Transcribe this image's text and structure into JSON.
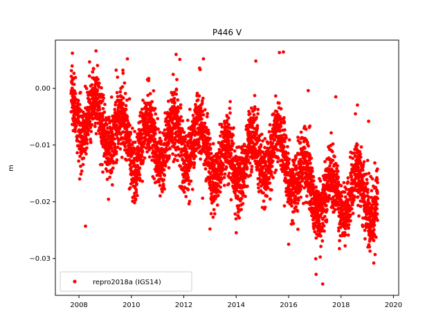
{
  "chart_data": {
    "type": "scatter",
    "title": "P446 V",
    "xlabel": "",
    "ylabel": "m",
    "xlim": [
      2007.1,
      2020.2
    ],
    "ylim": [
      -0.0365,
      0.0085
    ],
    "xticks": [
      2008,
      2010,
      2012,
      2014,
      2016,
      2018,
      2020
    ],
    "xtick_labels": [
      "2008",
      "2010",
      "2012",
      "2014",
      "2016",
      "2018",
      "2020"
    ],
    "yticks": [
      0.0,
      -0.01,
      -0.02,
      -0.03
    ],
    "ytick_labels": [
      "0.00",
      "−0.01",
      "−0.02",
      "−0.03"
    ],
    "grid": false,
    "legend_position": "lower-left",
    "series": [
      {
        "name": "repro2018a (IGS14)",
        "color": "#ff0000",
        "marker": "circle",
        "x_range": [
          2007.7,
          2019.4
        ],
        "seasonal_model": {
          "anchors_x": [
            2007.7,
            2009.0,
            2010.0,
            2011.5,
            2012.5,
            2013.5,
            2014.5,
            2015.5,
            2016.5,
            2017.5,
            2018.5,
            2019.4
          ],
          "anchors_y": [
            -0.004,
            -0.006,
            -0.01,
            -0.009,
            -0.009,
            -0.014,
            -0.012,
            -0.011,
            -0.016,
            -0.02,
            -0.018,
            -0.019
          ],
          "annual_amplitude": 0.004,
          "scatter_std": 0.0028,
          "samples_per_year": 365
        },
        "notable_points": [
          {
            "x": 2007.75,
            "y": 0.0062
          },
          {
            "x": 2008.65,
            "y": 0.0066
          },
          {
            "x": 2008.25,
            "y": -0.0243
          },
          {
            "x": 2009.85,
            "y": 0.0052
          },
          {
            "x": 2011.85,
            "y": 0.0051
          },
          {
            "x": 2012.75,
            "y": 0.0052
          },
          {
            "x": 2014.75,
            "y": 0.0048
          },
          {
            "x": 2015.65,
            "y": 0.0063
          },
          {
            "x": 2015.8,
            "y": 0.0064
          },
          {
            "x": 2013.0,
            "y": -0.0248
          },
          {
            "x": 2016.0,
            "y": -0.0275
          },
          {
            "x": 2017.05,
            "y": -0.0328
          },
          {
            "x": 2017.3,
            "y": -0.0345
          },
          {
            "x": 2017.8,
            "y": -0.0015
          },
          {
            "x": 2018.55,
            "y": -0.0045
          },
          {
            "x": 2019.05,
            "y": -0.0058
          },
          {
            "x": 2019.25,
            "y": -0.0308
          },
          {
            "x": 2019.3,
            "y": -0.0293
          }
        ]
      }
    ]
  }
}
